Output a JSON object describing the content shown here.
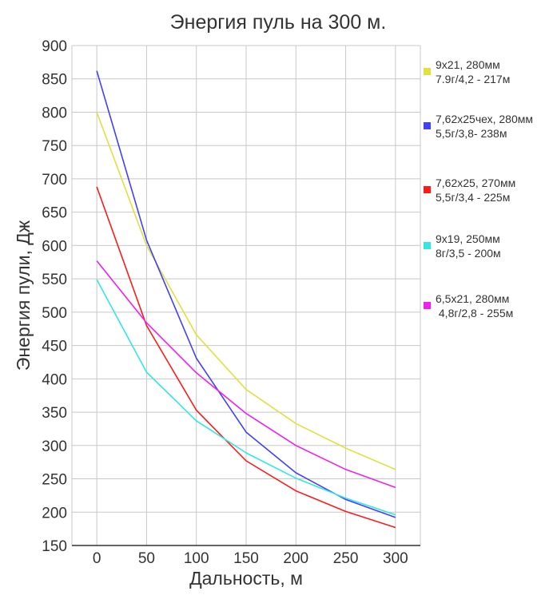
{
  "chart_data": {
    "type": "line",
    "title": "Энергия пуль на 300 м.",
    "xlabel": "Дальность, м",
    "ylabel": "Энергия пули, Дж",
    "x": [
      0,
      50,
      100,
      150,
      200,
      250,
      300
    ],
    "xlim": [
      -25,
      325
    ],
    "ylim": [
      150,
      900
    ],
    "xticks": [
      "0",
      "50",
      "100",
      "150",
      "200",
      "250",
      "300"
    ],
    "yticks": [
      "150",
      "200",
      "250",
      "300",
      "350",
      "400",
      "450",
      "500",
      "550",
      "600",
      "650",
      "700",
      "750",
      "800",
      "850",
      "900"
    ],
    "grid": true,
    "legend_position": "right",
    "series": [
      {
        "name": "9х21,  280мм",
        "name2": "7.9г/4,2 - 217м",
        "color": "#e0e040",
        "values": [
          800,
          600,
          466,
          384,
          333,
          296,
          264
        ]
      },
      {
        "name": "7,62х25чех, 280мм",
        "name2": "5,5г/3,8- 238м",
        "color": "#4040ff",
        "values": [
          862,
          608,
          431,
          320,
          259,
          219,
          192
        ]
      },
      {
        "name": "7,62х25, 270мм",
        "name2": "5,5г/3,4 - 225м",
        "color": "#ff1a1a",
        "values": [
          688,
          480,
          353,
          277,
          232,
          201,
          177
        ]
      },
      {
        "name": "9х19,  250мм",
        "name2": "8г/3,5 - 200м",
        "color": "#33e6e6",
        "values": [
          549,
          410,
          337,
          289,
          251,
          221,
          196
        ]
      },
      {
        "name": "6,5х21, 280мм",
        "name2": " 4,8г/2,8 - 255м",
        "color": "#ee22ee",
        "values": [
          577,
          484,
          409,
          348,
          300,
          264,
          237
        ]
      }
    ]
  }
}
